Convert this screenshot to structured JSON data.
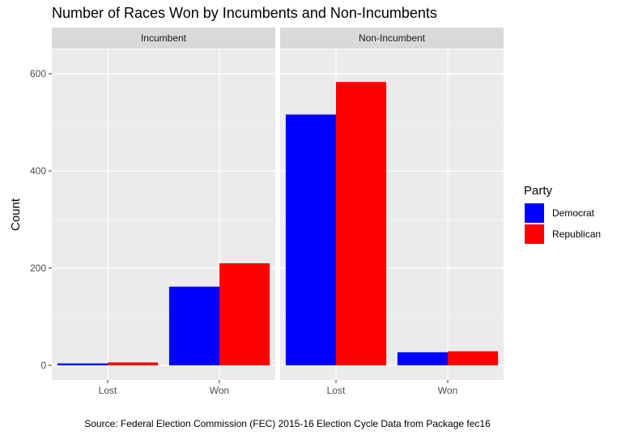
{
  "chart_data": {
    "type": "bar",
    "title": "Number of Races Won by Incumbents and Non-Incumbents",
    "ylabel": "Count",
    "xlabel": "",
    "caption": "Source: Federal Election Commission (FEC) 2015-16 Election Cycle Data from Package fec16",
    "ylim": [
      -30,
      650
    ],
    "yticks": [
      0,
      200,
      400,
      600
    ],
    "categories": [
      "Lost",
      "Won"
    ],
    "grid": true,
    "legend_placement": "right",
    "legend": {
      "title": "Party",
      "items": [
        {
          "name": "Democrat",
          "color": "#0000FF"
        },
        {
          "name": "Republican",
          "color": "#FF0000"
        }
      ]
    },
    "panels": [
      {
        "label": "Incumbent",
        "series": [
          {
            "name": "Democrat",
            "values": [
              4,
              162
            ]
          },
          {
            "name": "Republican",
            "values": [
              6,
              210
            ]
          }
        ]
      },
      {
        "label": "Non-Incumbent",
        "series": [
          {
            "name": "Democrat",
            "values": [
              516,
              27
            ]
          },
          {
            "name": "Republican",
            "values": [
              583,
              29
            ]
          }
        ]
      }
    ],
    "colors": {
      "panel_background": "#EBEBEB",
      "strip_background": "#D9D9D9",
      "grid": "#FFFFFF",
      "Democrat": "#0000FF",
      "Republican": "#FF0000"
    }
  }
}
